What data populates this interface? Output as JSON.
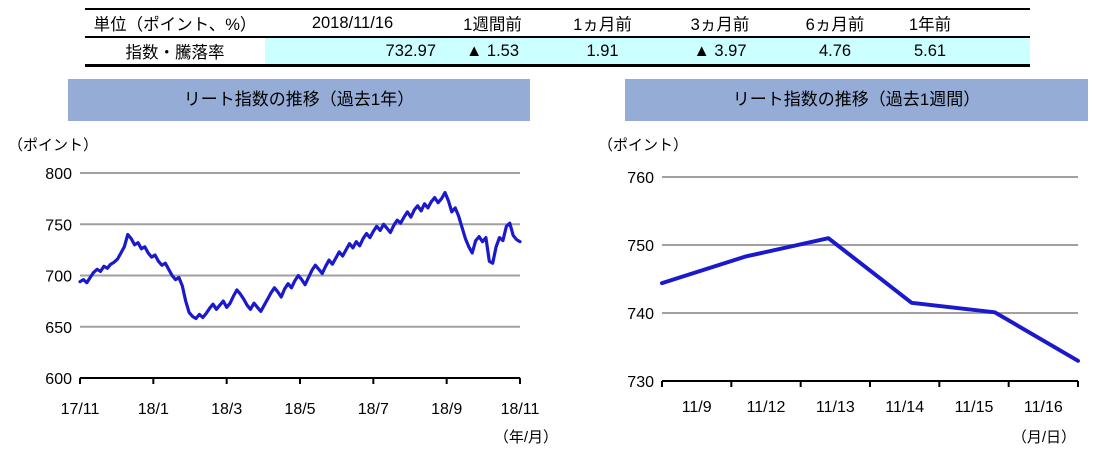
{
  "table": {
    "headers": [
      "単位（ポイント、%）",
      "2018/11/16",
      "1週間前",
      "1ヵ月前",
      "3ヵ月前",
      "6ヵ月前",
      "1年前"
    ],
    "row_label": "指数・騰落率",
    "values": [
      "732.97",
      "▲ 1.53",
      "1.91",
      "▲ 3.97",
      "4.76",
      "5.61"
    ]
  },
  "colors": {
    "title_bar": "#95ACD7",
    "highlight": "#CCFFFF",
    "line": "#1A1ACC",
    "gridline": "#A0A0A0",
    "axis": "#000000"
  },
  "chart_data": [
    {
      "type": "line",
      "title": "リート指数の推移（過去1年）",
      "ylabel": "（ポイント）",
      "xlabel": "（年/月）",
      "series_name": "リート指数",
      "x_tick_labels": [
        "17/11",
        "18/1",
        "18/3",
        "18/5",
        "18/7",
        "18/9",
        "18/11"
      ],
      "tick_label_position": "on-tick",
      "ylim": [
        600,
        800
      ],
      "yticks": [
        600,
        650,
        700,
        750,
        800
      ],
      "grid": true,
      "legend": "none",
      "values": [
        694,
        696,
        693,
        698,
        703,
        706,
        704,
        709,
        707,
        711,
        713,
        716,
        722,
        728,
        740,
        736,
        730,
        732,
        726,
        728,
        722,
        718,
        720,
        714,
        710,
        712,
        706,
        700,
        696,
        698,
        690,
        675,
        664,
        660,
        658,
        662,
        659,
        663,
        668,
        672,
        667,
        671,
        675,
        669,
        673,
        680,
        686,
        682,
        677,
        671,
        667,
        673,
        669,
        665,
        671,
        677,
        683,
        688,
        684,
        679,
        687,
        692,
        688,
        695,
        700,
        696,
        691,
        698,
        705,
        710,
        706,
        702,
        709,
        715,
        711,
        717,
        723,
        719,
        725,
        731,
        727,
        733,
        729,
        736,
        741,
        737,
        743,
        748,
        744,
        750,
        746,
        742,
        749,
        754,
        751,
        757,
        762,
        757,
        764,
        768,
        763,
        770,
        766,
        772,
        776,
        771,
        775,
        781,
        773,
        762,
        766,
        758,
        747,
        736,
        728,
        722,
        734,
        738,
        733,
        737,
        714,
        712,
        728,
        737,
        734,
        748,
        751,
        739,
        735,
        733
      ]
    },
    {
      "type": "line",
      "title": "リート指数の推移（過去1週間）",
      "ylabel": "（ポイント）",
      "xlabel": "（月/日）",
      "series_name": "リート指数",
      "categories": [
        "11/9",
        "11/12",
        "11/13",
        "11/14",
        "11/15",
        "11/16"
      ],
      "tick_label_position": "between-ticks",
      "ylim": [
        730,
        760
      ],
      "yticks": [
        730,
        740,
        750,
        760
      ],
      "grid": true,
      "legend": "none",
      "values": [
        744.4,
        748.3,
        751.0,
        741.5,
        740.1,
        732.97
      ]
    }
  ]
}
